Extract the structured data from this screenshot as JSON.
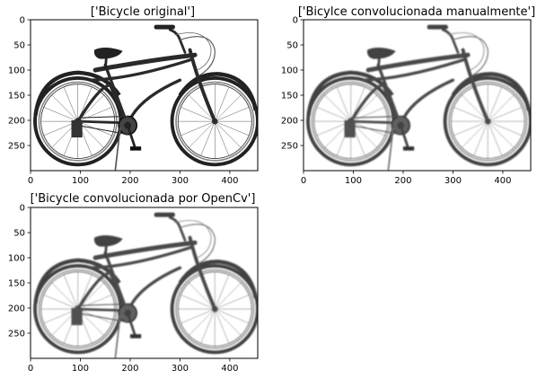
{
  "panels": [
    {
      "id": "original",
      "title": "['Bicycle original']",
      "x_ticks": [
        "0",
        "100",
        "200",
        "300",
        "400"
      ],
      "y_ticks": [
        "0",
        "50",
        "100",
        "150",
        "200",
        "250"
      ],
      "blur": 0
    },
    {
      "id": "manual",
      "title": "['Bicylce convolucionada manualmente']",
      "x_ticks": [
        "0",
        "100",
        "200",
        "300",
        "400"
      ],
      "y_ticks": [
        "0",
        "50",
        "100",
        "150",
        "200",
        "250"
      ],
      "blur": 1.6
    },
    {
      "id": "opencv",
      "title": "['Bicycle convolucionada por OpenCv']",
      "x_ticks": [
        "0",
        "100",
        "200",
        "300",
        "400"
      ],
      "y_ticks": [
        "0",
        "50",
        "100",
        "150",
        "200",
        "250"
      ],
      "blur": 1.3
    }
  ],
  "image_extent": {
    "width": 456,
    "height": 300
  },
  "icons": {
    "subject": "bicycle-icon"
  }
}
